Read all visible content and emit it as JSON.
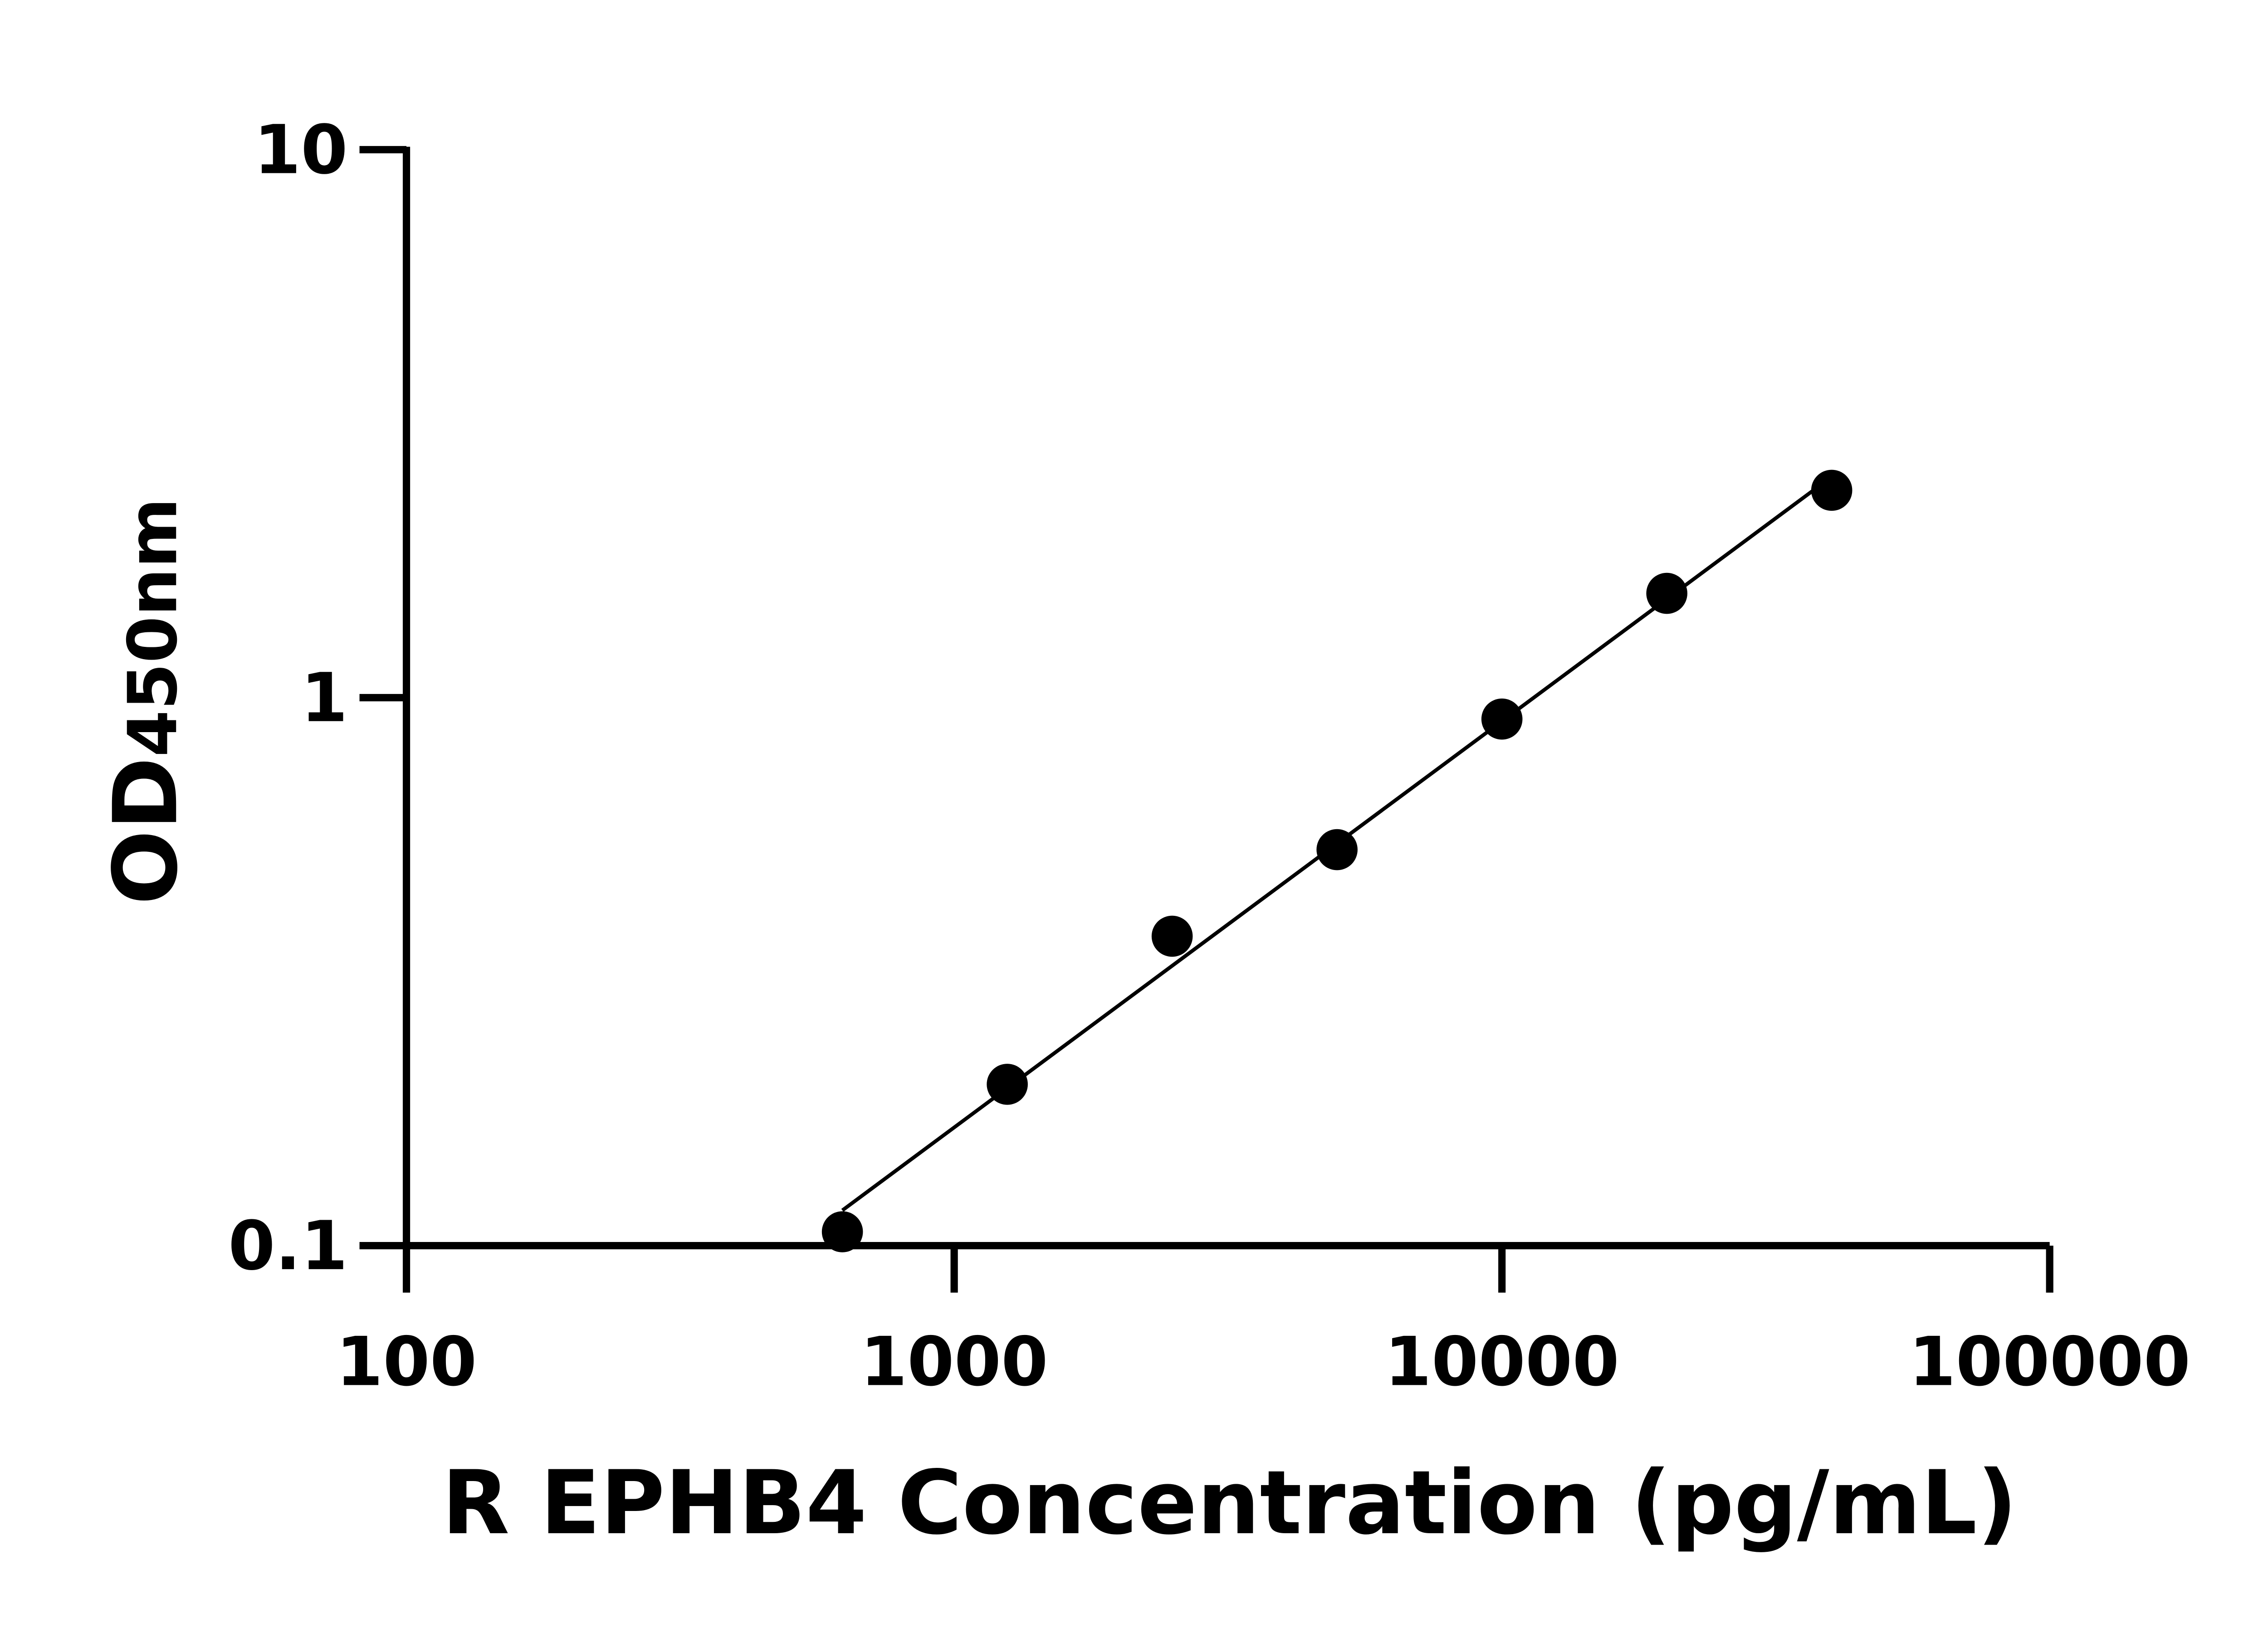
{
  "chart_data": {
    "type": "scatter",
    "title": "",
    "xlabel": "R EPHB4 Concentration (pg/mL)",
    "ylabel_main": "OD",
    "ylabel_sub": "450nm",
    "x_scale": "log",
    "y_scale": "log",
    "xlim": [
      100,
      100000
    ],
    "ylim": [
      0.1,
      10
    ],
    "x_ticks": [
      "100",
      "1000",
      "10000",
      "100000"
    ],
    "y_ticks": [
      "0.1",
      "1",
      "10"
    ],
    "grid": false,
    "legend": "none",
    "points": [
      {
        "x": 625,
        "y": 0.106
      },
      {
        "x": 1250,
        "y": 0.197
      },
      {
        "x": 2500,
        "y": 0.367
      },
      {
        "x": 5000,
        "y": 0.528
      },
      {
        "x": 10000,
        "y": 0.914
      },
      {
        "x": 20000,
        "y": 1.55
      },
      {
        "x": 40000,
        "y": 2.39
      }
    ],
    "fit_line": true,
    "color": "#000000"
  }
}
